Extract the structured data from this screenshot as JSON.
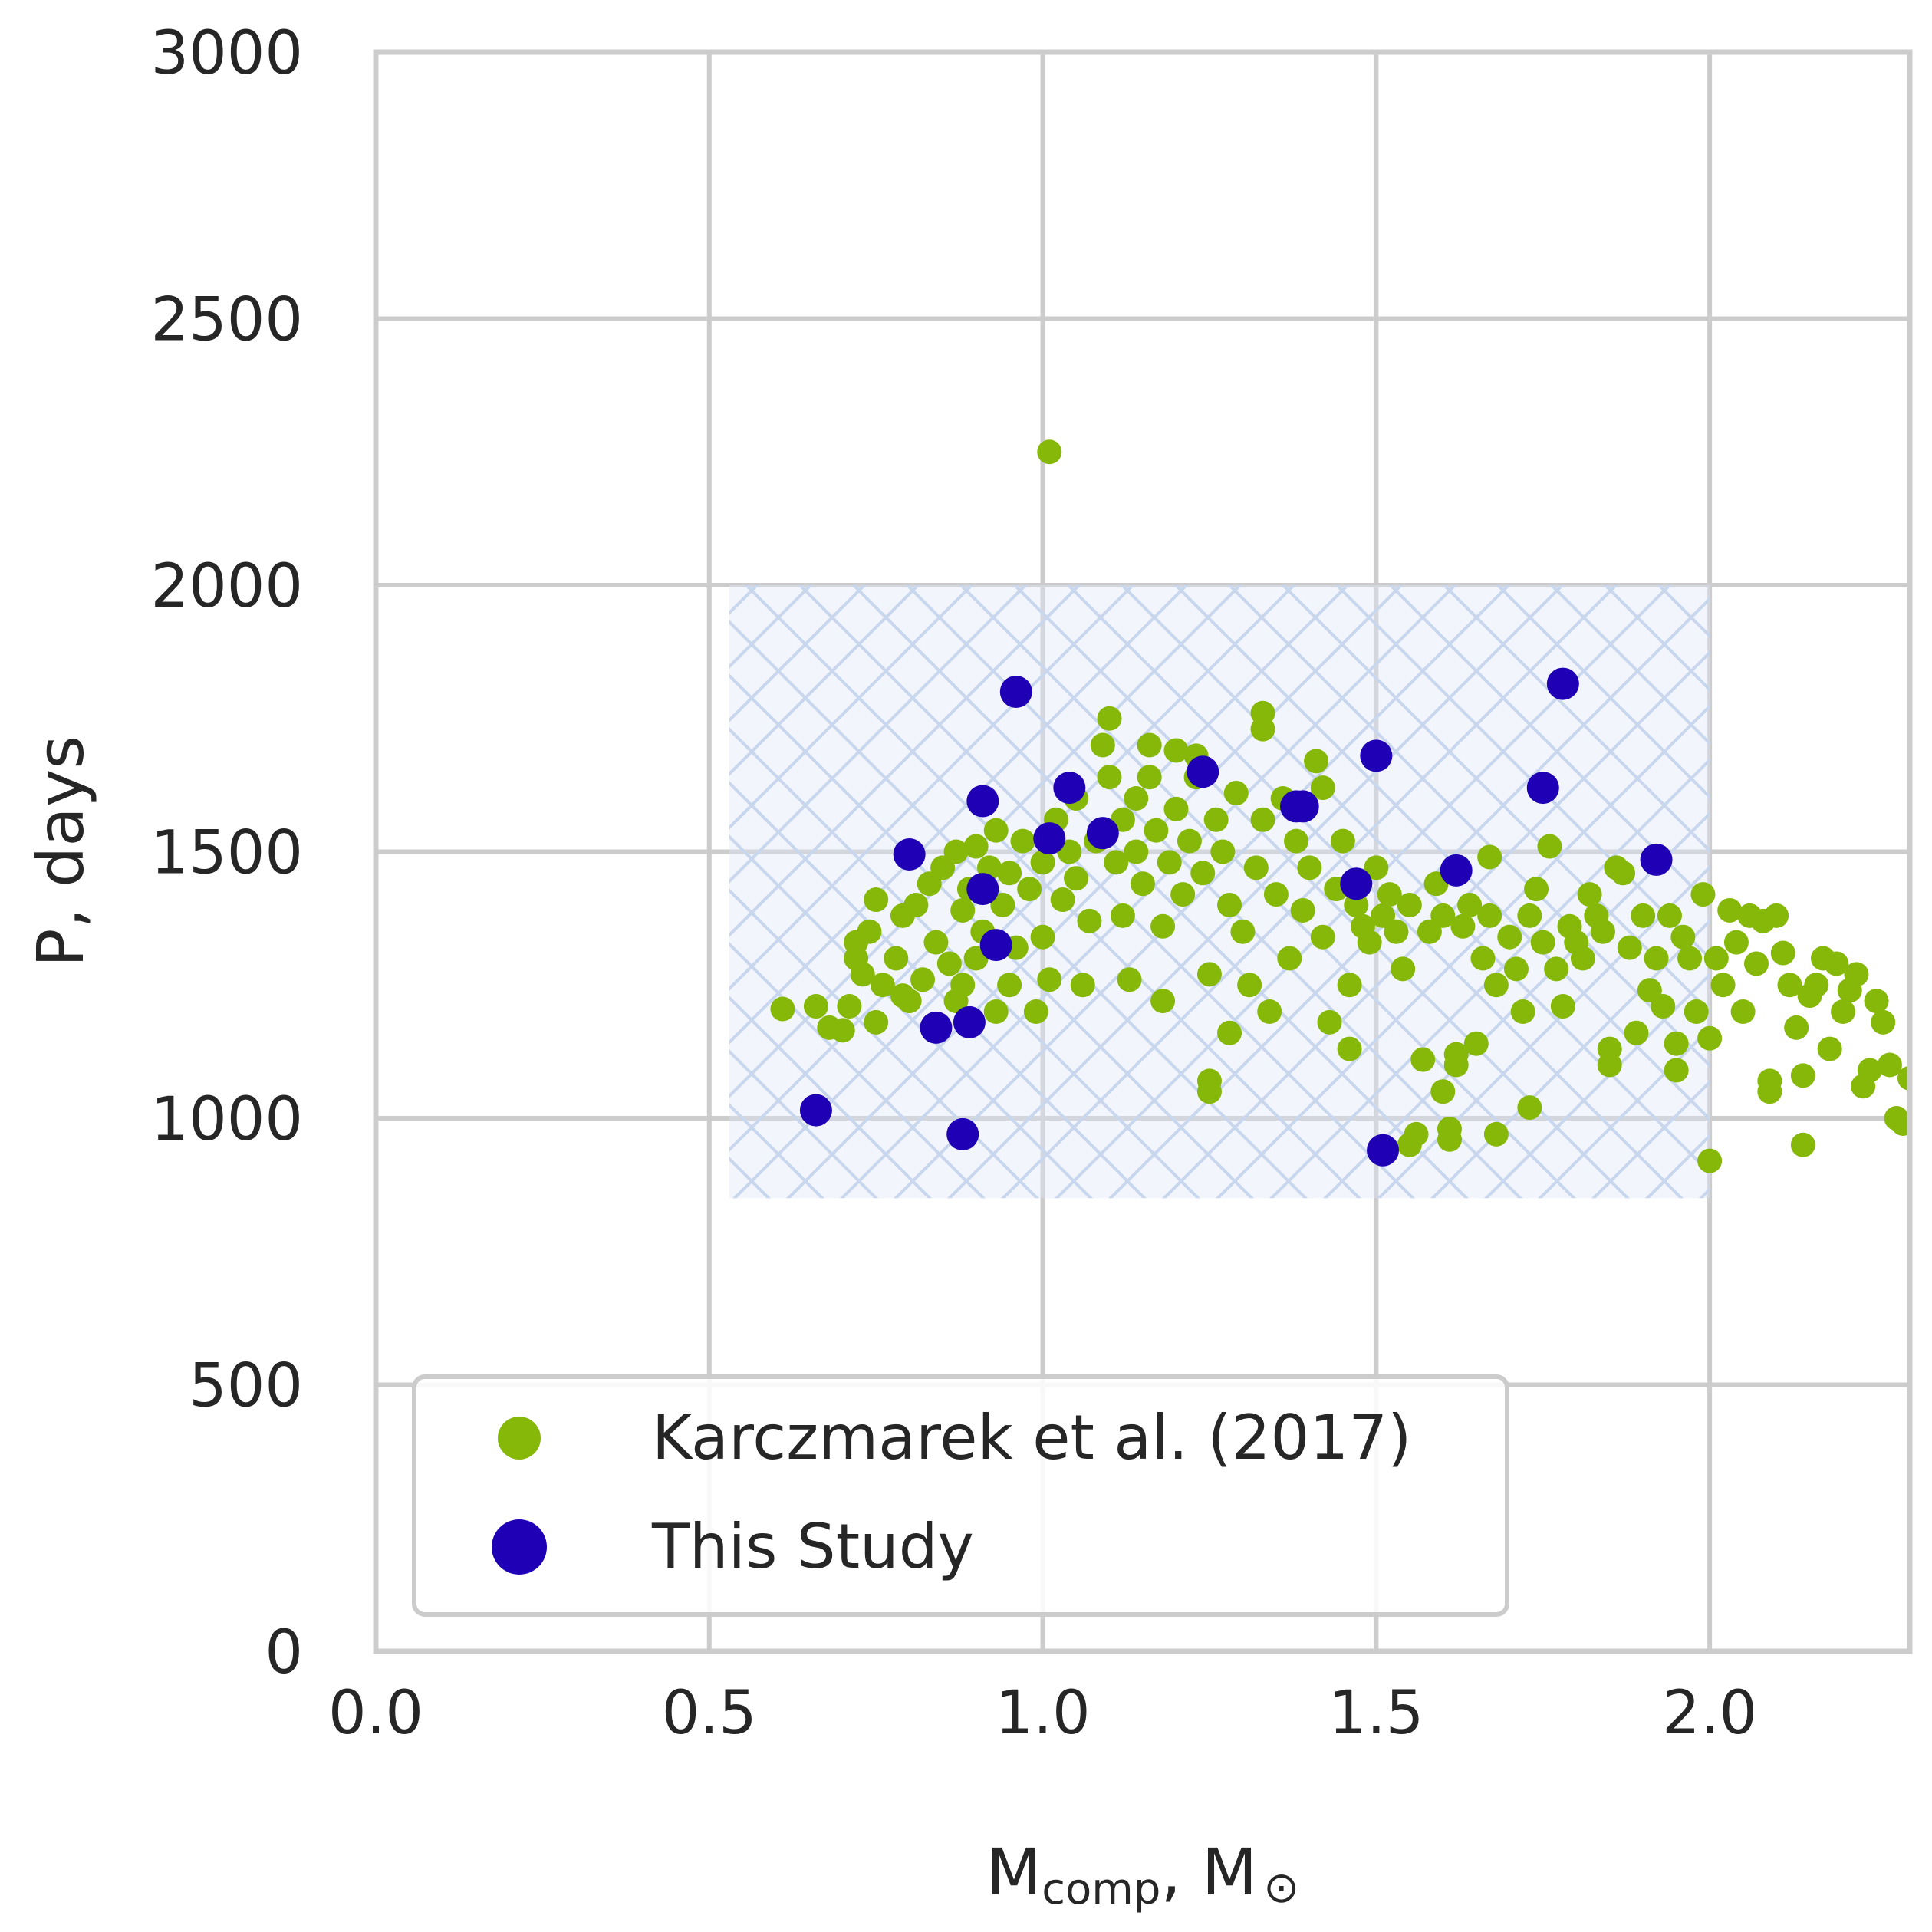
{
  "chart_data": {
    "type": "scatter",
    "xlabel": "M",
    "xlabel_sub": "comp",
    "xlabel_tail": ", M",
    "xlabel_symbol": "⊙",
    "ylabel": "P, days",
    "xlim": [
      0.0,
      2.3
    ],
    "ylim": [
      0,
      3000
    ],
    "x_ticks": [
      "0.0",
      "0.5",
      "1.0",
      "1.5",
      "2.0"
    ],
    "y_ticks": [
      "0",
      "500",
      "1000",
      "1500",
      "2000",
      "2500",
      "3000"
    ],
    "grid": true,
    "legend_placement": "lower-left",
    "shaded_region": {
      "x": [
        0.53,
        2.0
      ],
      "y": [
        850,
        2000
      ],
      "color": "#dfe8f8",
      "hatch": "cross"
    },
    "series": [
      {
        "name": "Karczmarek et al. (2017)",
        "color": "#86b80a",
        "points": [
          [
            1.01,
            2250
          ],
          [
            0.61,
            1205
          ],
          [
            0.66,
            1210
          ],
          [
            0.68,
            1170
          ],
          [
            0.7,
            1165
          ],
          [
            0.71,
            1210
          ],
          [
            0.72,
            1330
          ],
          [
            0.72,
            1300
          ],
          [
            0.73,
            1270
          ],
          [
            0.74,
            1350
          ],
          [
            0.75,
            1180
          ],
          [
            0.75,
            1410
          ],
          [
            0.76,
            1250
          ],
          [
            0.78,
            1300
          ],
          [
            0.79,
            1230
          ],
          [
            0.79,
            1380
          ],
          [
            0.8,
            1220
          ],
          [
            0.81,
            1400
          ],
          [
            0.82,
            1260
          ],
          [
            0.83,
            1440
          ],
          [
            0.84,
            1330
          ],
          [
            0.85,
            1470
          ],
          [
            0.86,
            1290
          ],
          [
            0.87,
            1220
          ],
          [
            0.87,
            1500
          ],
          [
            0.88,
            1390
          ],
          [
            0.88,
            1250
          ],
          [
            0.89,
            1430
          ],
          [
            0.9,
            1300
          ],
          [
            0.9,
            1510
          ],
          [
            0.91,
            1350
          ],
          [
            0.92,
            1470
          ],
          [
            0.93,
            1200
          ],
          [
            0.93,
            1540
          ],
          [
            0.94,
            1400
          ],
          [
            0.95,
            1250
          ],
          [
            0.95,
            1460
          ],
          [
            0.96,
            1320
          ],
          [
            0.97,
            1520
          ],
          [
            0.98,
            1430
          ],
          [
            0.99,
            1200
          ],
          [
            1.0,
            1480
          ],
          [
            1.0,
            1340
          ],
          [
            1.01,
            1260
          ],
          [
            1.02,
            1560
          ],
          [
            1.03,
            1410
          ],
          [
            1.04,
            1500
          ],
          [
            1.05,
            1600
          ],
          [
            1.05,
            1450
          ],
          [
            1.06,
            1250
          ],
          [
            1.07,
            1370
          ],
          [
            1.08,
            1520
          ],
          [
            1.09,
            1700
          ],
          [
            1.1,
            1750
          ],
          [
            1.1,
            1640
          ],
          [
            1.11,
            1480
          ],
          [
            1.12,
            1560
          ],
          [
            1.12,
            1380
          ],
          [
            1.13,
            1260
          ],
          [
            1.14,
            1600
          ],
          [
            1.14,
            1500
          ],
          [
            1.15,
            1440
          ],
          [
            1.16,
            1640
          ],
          [
            1.16,
            1700
          ],
          [
            1.17,
            1540
          ],
          [
            1.18,
            1360
          ],
          [
            1.18,
            1220
          ],
          [
            1.19,
            1480
          ],
          [
            1.2,
            1690
          ],
          [
            1.2,
            1580
          ],
          [
            1.21,
            1420
          ],
          [
            1.22,
            1520
          ],
          [
            1.23,
            1640
          ],
          [
            1.23,
            1680
          ],
          [
            1.24,
            1460
          ],
          [
            1.25,
            1270
          ],
          [
            1.25,
            1070
          ],
          [
            1.25,
            1050
          ],
          [
            1.26,
            1560
          ],
          [
            1.27,
            1500
          ],
          [
            1.28,
            1160
          ],
          [
            1.28,
            1400
          ],
          [
            1.29,
            1610
          ],
          [
            1.3,
            1350
          ],
          [
            1.31,
            1250
          ],
          [
            1.32,
            1470
          ],
          [
            1.33,
            1560
          ],
          [
            1.33,
            1760
          ],
          [
            1.33,
            1730
          ],
          [
            1.34,
            1200
          ],
          [
            1.35,
            1420
          ],
          [
            1.36,
            1600
          ],
          [
            1.37,
            1300
          ],
          [
            1.38,
            1520
          ],
          [
            1.39,
            1390
          ],
          [
            1.4,
            1470
          ],
          [
            1.41,
            1670
          ],
          [
            1.42,
            1620
          ],
          [
            1.42,
            1340
          ],
          [
            1.43,
            1180
          ],
          [
            1.44,
            1430
          ],
          [
            1.45,
            1520
          ],
          [
            1.46,
            1250
          ],
          [
            1.46,
            1130
          ],
          [
            1.47,
            1400
          ],
          [
            1.48,
            1360
          ],
          [
            1.49,
            1330
          ],
          [
            1.5,
            1470
          ],
          [
            1.51,
            1380
          ],
          [
            1.52,
            1420
          ],
          [
            1.53,
            1350
          ],
          [
            1.54,
            1280
          ],
          [
            1.55,
            1400
          ],
          [
            1.55,
            950
          ],
          [
            1.56,
            970
          ],
          [
            1.57,
            1110
          ],
          [
            1.58,
            1350
          ],
          [
            1.59,
            1440
          ],
          [
            1.6,
            1380
          ],
          [
            1.6,
            1050
          ],
          [
            1.61,
            980
          ],
          [
            1.61,
            960
          ],
          [
            1.62,
            1100
          ],
          [
            1.62,
            1120
          ],
          [
            1.63,
            1360
          ],
          [
            1.64,
            1400
          ],
          [
            1.65,
            1140
          ],
          [
            1.66,
            1300
          ],
          [
            1.67,
            1490
          ],
          [
            1.67,
            1380
          ],
          [
            1.68,
            970
          ],
          [
            1.68,
            1250
          ],
          [
            1.7,
            1340
          ],
          [
            1.71,
            1280
          ],
          [
            1.72,
            1200
          ],
          [
            1.73,
            1380
          ],
          [
            1.73,
            1020
          ],
          [
            1.74,
            1430
          ],
          [
            1.75,
            1330
          ],
          [
            1.76,
            1510
          ],
          [
            1.77,
            1280
          ],
          [
            1.78,
            1210
          ],
          [
            1.79,
            1360
          ],
          [
            1.8,
            1330
          ],
          [
            1.81,
            1300
          ],
          [
            1.82,
            1420
          ],
          [
            1.83,
            1380
          ],
          [
            1.84,
            1350
          ],
          [
            1.85,
            1130
          ],
          [
            1.85,
            1100
          ],
          [
            1.86,
            1470
          ],
          [
            1.87,
            1460
          ],
          [
            1.88,
            1320
          ],
          [
            1.89,
            1160
          ],
          [
            1.9,
            1380
          ],
          [
            1.91,
            1240
          ],
          [
            1.92,
            1300
          ],
          [
            1.93,
            1210
          ],
          [
            1.94,
            1380
          ],
          [
            1.95,
            1140
          ],
          [
            1.95,
            1090
          ],
          [
            1.96,
            1340
          ],
          [
            1.97,
            1300
          ],
          [
            1.98,
            1200
          ],
          [
            1.99,
            1420
          ],
          [
            2.0,
            920
          ],
          [
            2.0,
            1150
          ],
          [
            2.01,
            1300
          ],
          [
            2.02,
            1250
          ],
          [
            2.03,
            1390
          ],
          [
            2.04,
            1330
          ],
          [
            2.05,
            1200
          ],
          [
            2.06,
            1380
          ],
          [
            2.07,
            1290
          ],
          [
            2.08,
            1370
          ],
          [
            2.09,
            1050
          ],
          [
            2.09,
            1070
          ],
          [
            2.1,
            1380
          ],
          [
            2.11,
            1310
          ],
          [
            2.12,
            1250
          ],
          [
            2.13,
            1170
          ],
          [
            2.14,
            950
          ],
          [
            2.14,
            1080
          ],
          [
            2.15,
            1230
          ],
          [
            2.16,
            1250
          ],
          [
            2.17,
            1300
          ],
          [
            2.18,
            1130
          ],
          [
            2.19,
            1290
          ],
          [
            2.2,
            1200
          ],
          [
            2.21,
            1240
          ],
          [
            2.22,
            1270
          ],
          [
            2.23,
            1060
          ],
          [
            2.24,
            1090
          ],
          [
            2.25,
            1220
          ],
          [
            2.26,
            1180
          ],
          [
            2.27,
            1100
          ],
          [
            2.28,
            1000
          ],
          [
            2.29,
            990
          ],
          [
            2.3,
            1075
          ]
        ]
      },
      {
        "name": "This Study",
        "color": "#1f00b4",
        "points": [
          [
            0.66,
            1015
          ],
          [
            0.8,
            1495
          ],
          [
            0.84,
            1170
          ],
          [
            0.88,
            970
          ],
          [
            0.89,
            1180
          ],
          [
            0.91,
            1430
          ],
          [
            0.91,
            1595
          ],
          [
            0.93,
            1325
          ],
          [
            0.96,
            1800
          ],
          [
            1.01,
            1525
          ],
          [
            1.04,
            1620
          ],
          [
            1.09,
            1535
          ],
          [
            1.24,
            1650
          ],
          [
            1.38,
            1585
          ],
          [
            1.39,
            1585
          ],
          [
            1.47,
            1440
          ],
          [
            1.5,
            1680
          ],
          [
            1.51,
            940
          ],
          [
            1.62,
            1465
          ],
          [
            1.75,
            1620
          ],
          [
            1.78,
            1815
          ],
          [
            1.92,
            1485
          ]
        ]
      }
    ]
  }
}
